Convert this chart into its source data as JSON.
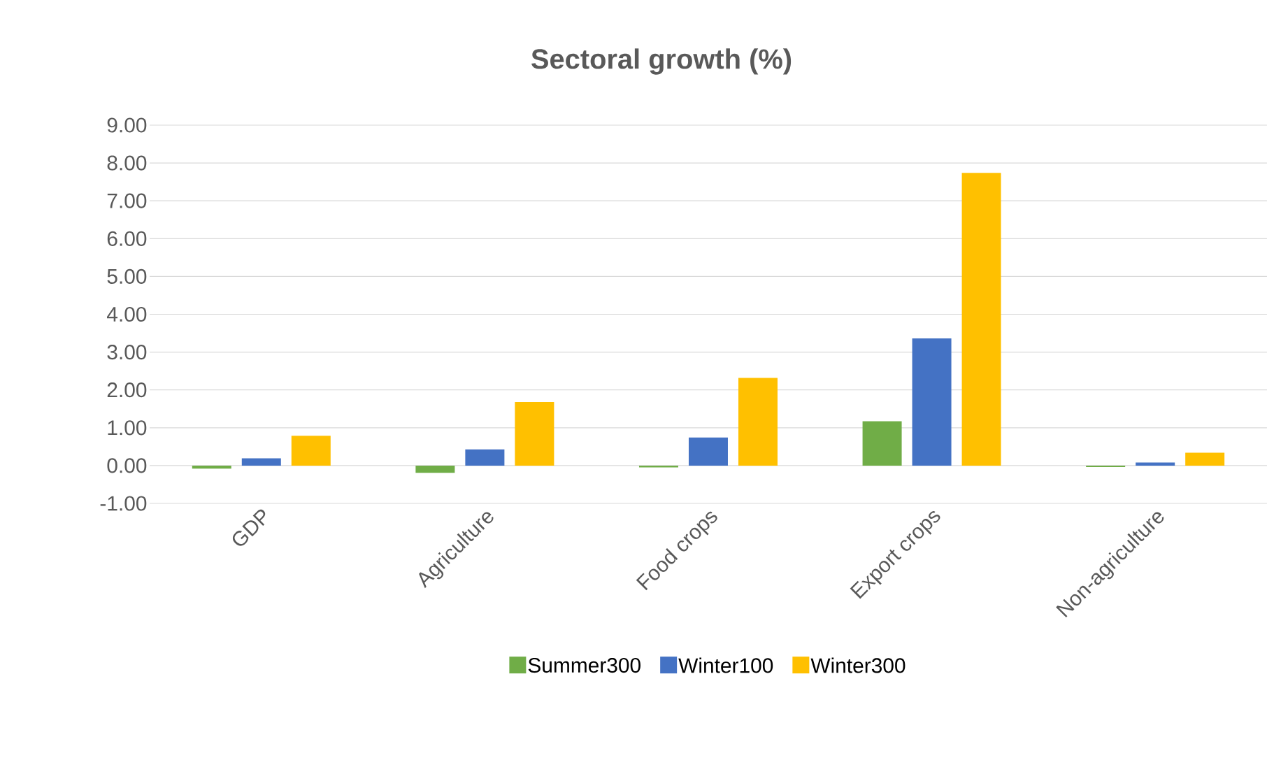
{
  "chart_data": {
    "type": "bar",
    "title": "Sectoral growth (%)",
    "categories": [
      "GDP",
      "Agriculture",
      "Food crops",
      "Export crops",
      "Non-agriculture"
    ],
    "series": [
      {
        "name": "Summer300",
        "color": "#70ad47",
        "values": [
          -0.08,
          -0.19,
          -0.05,
          1.17,
          -0.04
        ]
      },
      {
        "name": "Winter100",
        "color": "#4472c4",
        "values": [
          0.19,
          0.43,
          0.74,
          3.36,
          0.08
        ]
      },
      {
        "name": "Winter300",
        "color": "#ffc000",
        "values": [
          0.79,
          1.68,
          2.32,
          7.74,
          0.34
        ]
      }
    ],
    "ylim": [
      -1,
      9
    ],
    "yticks": [
      {
        "value": -1,
        "label": "-1.00"
      },
      {
        "value": 0,
        "label": "0.00"
      },
      {
        "value": 1,
        "label": "1.00"
      },
      {
        "value": 2,
        "label": "2.00"
      },
      {
        "value": 3,
        "label": "3.00"
      },
      {
        "value": 4,
        "label": "4.00"
      },
      {
        "value": 5,
        "label": "5.00"
      },
      {
        "value": 6,
        "label": "6.00"
      },
      {
        "value": 7,
        "label": "7.00"
      },
      {
        "value": 8,
        "label": "8.00"
      },
      {
        "value": 9,
        "label": "9.00"
      }
    ],
    "grid": "y",
    "legend": "bottom"
  }
}
